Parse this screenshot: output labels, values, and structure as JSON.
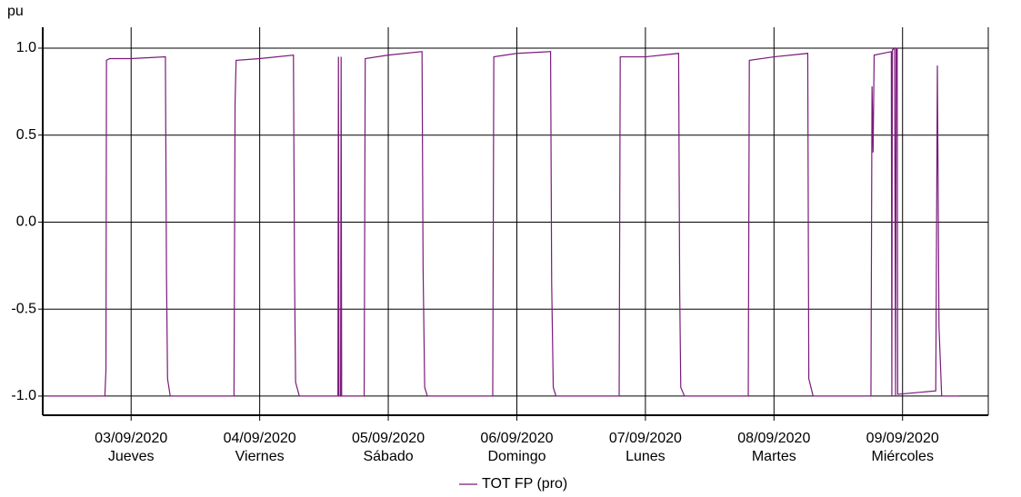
{
  "chart_data": {
    "type": "line",
    "y_label": "pu",
    "xlim": [
      -4.5,
      172
    ],
    "ylim": [
      -1.11,
      1.12
    ],
    "xticks": [
      {
        "value": 12,
        "label": "03/09/2020"
      },
      {
        "value": 36,
        "label": "04/09/2020"
      },
      {
        "value": 60,
        "label": "05/09/2020"
      },
      {
        "value": 84,
        "label": "06/09/2020"
      },
      {
        "value": 108,
        "label": "07/09/2020"
      },
      {
        "value": 132,
        "label": "08/09/2020"
      },
      {
        "value": 156,
        "label": "09/09/2020"
      }
    ],
    "xtick_sublabels": [
      "Jueves",
      "Viernes",
      "Sábado",
      "Domingo",
      "Lunes",
      "Martes",
      "Miércoles"
    ],
    "yticks": [
      {
        "value": 1,
        "label": "1.0"
      },
      {
        "value": 0.5,
        "label": "0.5"
      },
      {
        "value": 0,
        "label": "0.0"
      },
      {
        "value": -0.5,
        "label": "-0.5"
      },
      {
        "value": -1,
        "label": "-1.0"
      }
    ],
    "grid": true,
    "legend": "bottom",
    "x": [
      -3.9,
      7.1,
      7.3,
      7.4,
      8,
      12,
      18.4,
      18.6,
      18.8,
      19.3,
      31.2,
      31.4,
      31.6,
      36,
      42.3,
      42.5,
      42.7,
      43.4,
      50.6,
      50.7,
      50.8,
      51.1,
      51.2,
      51.3,
      55.5,
      55.7,
      60,
      66.3,
      66.5,
      66.8,
      67.3,
      79.5,
      79.7,
      84,
      90.3,
      90.5,
      90.8,
      91.3,
      103.1,
      103.3,
      108,
      114.2,
      114.4,
      114.6,
      115.3,
      127.2,
      127.4,
      132,
      138.3,
      138.5,
      139.3,
      150.1,
      150.3,
      150.5,
      150.7,
      153.9,
      154.0,
      154.1,
      154.5,
      154.7,
      154.8,
      155.0,
      155.1,
      162.2,
      162.5,
      162.8,
      163.3,
      166.5
    ],
    "series": [
      {
        "name": "TOT FP (pro)",
        "color": "#7b1a7b",
        "values": [
          -1,
          -1,
          -0.85,
          0.93,
          0.94,
          0.94,
          0.95,
          -0.3,
          -0.9,
          -1,
          -1,
          0.68,
          0.93,
          0.94,
          0.96,
          -0.3,
          -0.92,
          -1,
          -1,
          0.95,
          -1,
          -1,
          0.95,
          -1,
          -1,
          0.94,
          0.96,
          0.98,
          -0.27,
          -0.95,
          -1,
          -1,
          0.95,
          0.97,
          0.98,
          -0.35,
          -0.95,
          -1,
          -1,
          0.95,
          0.95,
          0.97,
          -0.4,
          -0.95,
          -1,
          -1,
          0.93,
          0.95,
          0.97,
          -0.9,
          -1,
          -1,
          0.78,
          0.4,
          0.96,
          0.98,
          -1,
          0.99,
          1.0,
          -1,
          1.0,
          1.0,
          -0.99,
          -0.97,
          0.9,
          -0.6,
          -1,
          -1
        ]
      }
    ]
  }
}
